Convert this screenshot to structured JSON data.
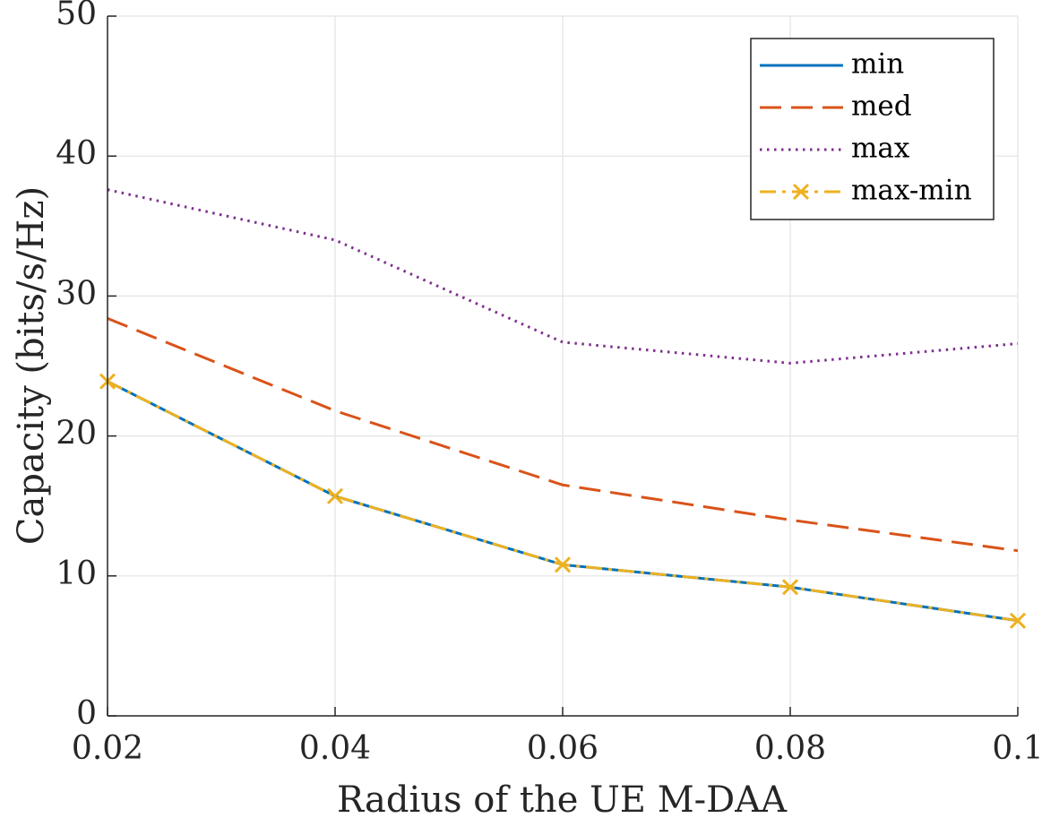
{
  "chart_data": {
    "type": "line",
    "title": "",
    "xlabel": "Radius of the UE M-DAA",
    "ylabel": "Capacity (bits/s/Hz)",
    "x": [
      0.02,
      0.04,
      0.06,
      0.08,
      0.1
    ],
    "xlim": [
      0.02,
      0.1
    ],
    "ylim": [
      0,
      50
    ],
    "xticks": [
      0.02,
      0.04,
      0.06,
      0.08,
      0.1
    ],
    "xtick_labels": [
      "0.02",
      "0.04",
      "0.06",
      "0.08",
      "0.1"
    ],
    "yticks": [
      0,
      10,
      20,
      30,
      40,
      50
    ],
    "ytick_labels": [
      "0",
      "10",
      "20",
      "30",
      "40",
      "50"
    ],
    "grid": true,
    "legend_position": "top-right",
    "series": [
      {
        "name": "min",
        "values": [
          23.9,
          15.7,
          10.8,
          9.2,
          6.8
        ],
        "color": "#0072BD",
        "style": "solid",
        "marker": "none"
      },
      {
        "name": "med",
        "values": [
          28.4,
          21.8,
          16.5,
          14.0,
          11.8
        ],
        "color": "#D95319",
        "style": "dashed",
        "marker": "none"
      },
      {
        "name": "max",
        "values": [
          37.6,
          34.0,
          26.7,
          25.2,
          26.6
        ],
        "color": "#7E2F8E",
        "style": "dotted",
        "marker": "none"
      },
      {
        "name": "max-min",
        "values": [
          23.9,
          15.7,
          10.8,
          9.2,
          6.8
        ],
        "color": "#EDB120",
        "style": "dashdot",
        "marker": "x"
      }
    ]
  }
}
